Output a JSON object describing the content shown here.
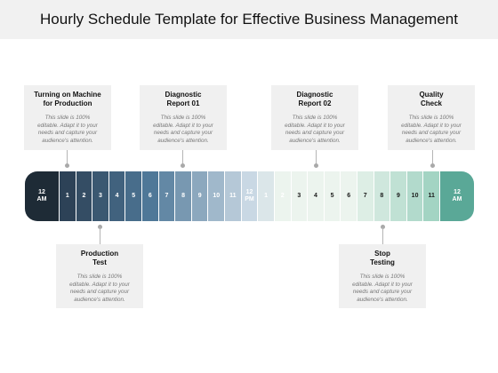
{
  "title": "Hourly Schedule Template for Effective Business Management",
  "cards": [
    {
      "heading": "Turning on Machine\nfor Production",
      "body": "This slide is 100%\neditable. Adapt it to your\nneeds and capture your\naudience's attention."
    },
    {
      "heading": "Diagnostic\nReport 01",
      "body": "This slide is 100%\neditable. Adapt it to your\nneeds and capture your\naudience's attention."
    },
    {
      "heading": "Diagnostic\nReport 02",
      "body": "This slide is 100%\neditable. Adapt it to your\nneeds and capture your\naudience's attention."
    },
    {
      "heading": "Quality\nCheck",
      "body": "This slide is 100%\neditable. Adapt it to your\nneeds and capture your\naudience's attention."
    },
    {
      "heading": "Production\nTest",
      "body": "This slide is 100%\neditable. Adapt it to your\nneeds and capture your\naudience's attention."
    },
    {
      "heading": "Stop\nTesting",
      "body": "This slide is 100%\neditable. Adapt it to your\nneeds and capture your\naudience's attention."
    }
  ],
  "hours": [
    "12\nAM",
    "1",
    "2",
    "3",
    "4",
    "5",
    "6",
    "7",
    "8",
    "9",
    "10",
    "11",
    "12\nPM",
    "1",
    "2",
    "3",
    "4",
    "5",
    "6",
    "7",
    "8",
    "9",
    "10",
    "11",
    "12\nAM"
  ],
  "colors": {
    "start": "#1e2b36",
    "morning_dark": "#2d4257",
    "morning_mid": "#4f7898",
    "noon": "#c9d8e4",
    "afternoon": "#ecf4ee",
    "evening": "#a3d4c3",
    "end": "#5aa897"
  }
}
